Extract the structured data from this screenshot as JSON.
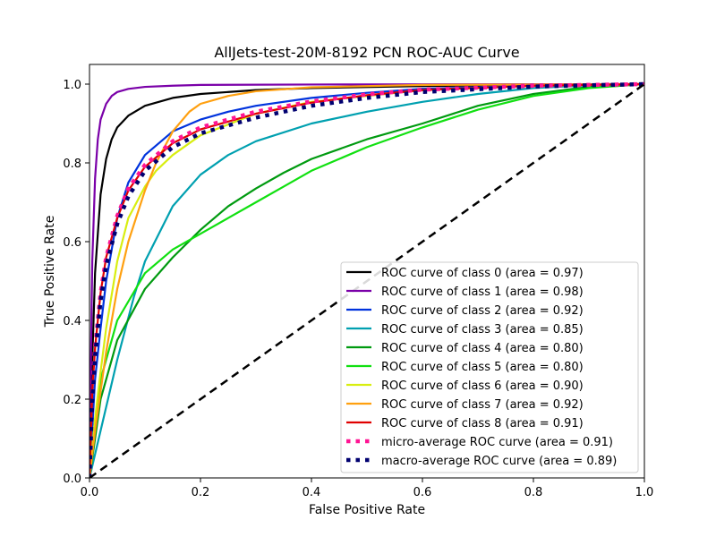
{
  "chart_data": {
    "type": "line",
    "title": "AllJets-test-20M-8192 PCN ROC-AUC Curve",
    "xlabel": "False Positive Rate",
    "ylabel": "True Positive Rate",
    "xlim": [
      0.0,
      1.0
    ],
    "ylim": [
      0.0,
      1.05
    ],
    "x_ticks": [
      "0.0",
      "0.2",
      "0.4",
      "0.6",
      "0.8",
      "1.0"
    ],
    "y_ticks": [
      "0.0",
      "0.2",
      "0.4",
      "0.6",
      "0.8",
      "1.0"
    ],
    "grid": false,
    "legend_position": "lower-right",
    "series": [
      {
        "name": "ROC curve of class 0 (area = 0.97)",
        "color": "#000000",
        "style": "solid",
        "x": [
          0,
          0.005,
          0.01,
          0.02,
          0.03,
          0.04,
          0.05,
          0.07,
          0.1,
          0.15,
          0.2,
          0.3,
          0.4,
          0.6,
          0.8,
          1.0
        ],
        "y": [
          0,
          0.3,
          0.52,
          0.72,
          0.81,
          0.86,
          0.89,
          0.92,
          0.945,
          0.965,
          0.975,
          0.985,
          0.99,
          0.995,
          0.998,
          1.0
        ]
      },
      {
        "name": "ROC curve of class 1 (area = 0.98)",
        "color": "#7a00a8",
        "style": "solid",
        "x": [
          0,
          0.003,
          0.005,
          0.01,
          0.015,
          0.02,
          0.03,
          0.04,
          0.05,
          0.07,
          0.1,
          0.15,
          0.2,
          0.4,
          1.0
        ],
        "y": [
          0,
          0.35,
          0.55,
          0.76,
          0.86,
          0.91,
          0.95,
          0.97,
          0.98,
          0.988,
          0.993,
          0.996,
          0.998,
          0.999,
          1.0
        ]
      },
      {
        "name": "ROC curve of class 2 (area = 0.92)",
        "color": "#0033dd",
        "style": "solid",
        "x": [
          0,
          0.01,
          0.02,
          0.03,
          0.05,
          0.07,
          0.1,
          0.15,
          0.2,
          0.25,
          0.3,
          0.4,
          0.5,
          0.6,
          0.8,
          1.0
        ],
        "y": [
          0,
          0.25,
          0.38,
          0.5,
          0.66,
          0.75,
          0.82,
          0.88,
          0.91,
          0.93,
          0.945,
          0.965,
          0.978,
          0.988,
          0.996,
          1.0
        ]
      },
      {
        "name": "ROC curve of class 3 (area = 0.85)",
        "color": "#00a0b0",
        "style": "solid",
        "x": [
          0,
          0.02,
          0.05,
          0.08,
          0.1,
          0.15,
          0.2,
          0.25,
          0.3,
          0.4,
          0.5,
          0.6,
          0.7,
          0.8,
          0.9,
          1.0
        ],
        "y": [
          0,
          0.12,
          0.3,
          0.46,
          0.55,
          0.69,
          0.77,
          0.82,
          0.855,
          0.9,
          0.93,
          0.955,
          0.975,
          0.99,
          0.997,
          1.0
        ]
      },
      {
        "name": "ROC curve of class 4 (area = 0.80)",
        "color": "#009a10",
        "style": "solid",
        "x": [
          0,
          0.02,
          0.05,
          0.1,
          0.15,
          0.2,
          0.25,
          0.3,
          0.35,
          0.4,
          0.5,
          0.6,
          0.7,
          0.8,
          0.9,
          1.0
        ],
        "y": [
          0,
          0.2,
          0.35,
          0.48,
          0.56,
          0.63,
          0.69,
          0.735,
          0.775,
          0.81,
          0.86,
          0.9,
          0.945,
          0.975,
          0.993,
          1.0
        ]
      },
      {
        "name": "ROC curve of class 5 (area = 0.80)",
        "color": "#11e011",
        "style": "solid",
        "x": [
          0,
          0.02,
          0.05,
          0.1,
          0.15,
          0.2,
          0.25,
          0.3,
          0.35,
          0.4,
          0.5,
          0.6,
          0.7,
          0.8,
          0.9,
          1.0
        ],
        "y": [
          0,
          0.25,
          0.4,
          0.52,
          0.58,
          0.62,
          0.66,
          0.7,
          0.74,
          0.78,
          0.84,
          0.89,
          0.935,
          0.97,
          0.99,
          1.0
        ]
      },
      {
        "name": "ROC curve of class 6 (area = 0.90)",
        "color": "#d8ee10",
        "style": "solid",
        "x": [
          0,
          0.01,
          0.02,
          0.03,
          0.05,
          0.07,
          0.1,
          0.12,
          0.15,
          0.2,
          0.3,
          0.4,
          0.6,
          0.8,
          1.0
        ],
        "y": [
          0,
          0.15,
          0.27,
          0.38,
          0.55,
          0.66,
          0.74,
          0.78,
          0.82,
          0.87,
          0.925,
          0.955,
          0.985,
          0.996,
          1.0
        ]
      },
      {
        "name": "ROC curve of class 7 (area = 0.92)",
        "color": "#ffa010",
        "style": "solid",
        "x": [
          0,
          0.01,
          0.02,
          0.03,
          0.05,
          0.07,
          0.1,
          0.12,
          0.15,
          0.18,
          0.2,
          0.25,
          0.3,
          0.4,
          0.6,
          1.0
        ],
        "y": [
          0,
          0.12,
          0.22,
          0.32,
          0.48,
          0.6,
          0.73,
          0.8,
          0.88,
          0.93,
          0.95,
          0.97,
          0.982,
          0.992,
          0.998,
          1.0
        ]
      },
      {
        "name": "ROC curve of class 8 (area = 0.91)",
        "color": "#e00000",
        "style": "solid",
        "x": [
          0,
          0.005,
          0.01,
          0.02,
          0.03,
          0.05,
          0.07,
          0.1,
          0.15,
          0.2,
          0.3,
          0.4,
          0.5,
          0.6,
          0.8,
          1.0
        ],
        "y": [
          0,
          0.22,
          0.33,
          0.47,
          0.56,
          0.66,
          0.73,
          0.79,
          0.85,
          0.885,
          0.925,
          0.953,
          0.972,
          0.985,
          0.996,
          1.0
        ]
      },
      {
        "name": "micro-average ROC curve (area = 0.91)",
        "color": "#ff1493",
        "style": "dotted",
        "x": [
          0,
          0.005,
          0.01,
          0.02,
          0.03,
          0.05,
          0.07,
          0.1,
          0.15,
          0.2,
          0.3,
          0.4,
          0.5,
          0.6,
          0.8,
          1.0
        ],
        "y": [
          0,
          0.22,
          0.33,
          0.47,
          0.56,
          0.665,
          0.735,
          0.795,
          0.855,
          0.89,
          0.93,
          0.956,
          0.974,
          0.986,
          0.996,
          1.0
        ]
      },
      {
        "name": "macro-average ROC curve (area = 0.89)",
        "color": "#000070",
        "style": "dotted",
        "x": [
          0,
          0.005,
          0.01,
          0.02,
          0.03,
          0.05,
          0.07,
          0.1,
          0.15,
          0.2,
          0.3,
          0.4,
          0.5,
          0.6,
          0.8,
          1.0
        ],
        "y": [
          0,
          0.2,
          0.31,
          0.45,
          0.54,
          0.645,
          0.715,
          0.78,
          0.84,
          0.875,
          0.915,
          0.945,
          0.965,
          0.98,
          0.994,
          1.0
        ]
      },
      {
        "name": "",
        "color": "#000000",
        "style": "dashed",
        "x": [
          0,
          1.0
        ],
        "y": [
          0,
          1.0
        ]
      }
    ]
  }
}
